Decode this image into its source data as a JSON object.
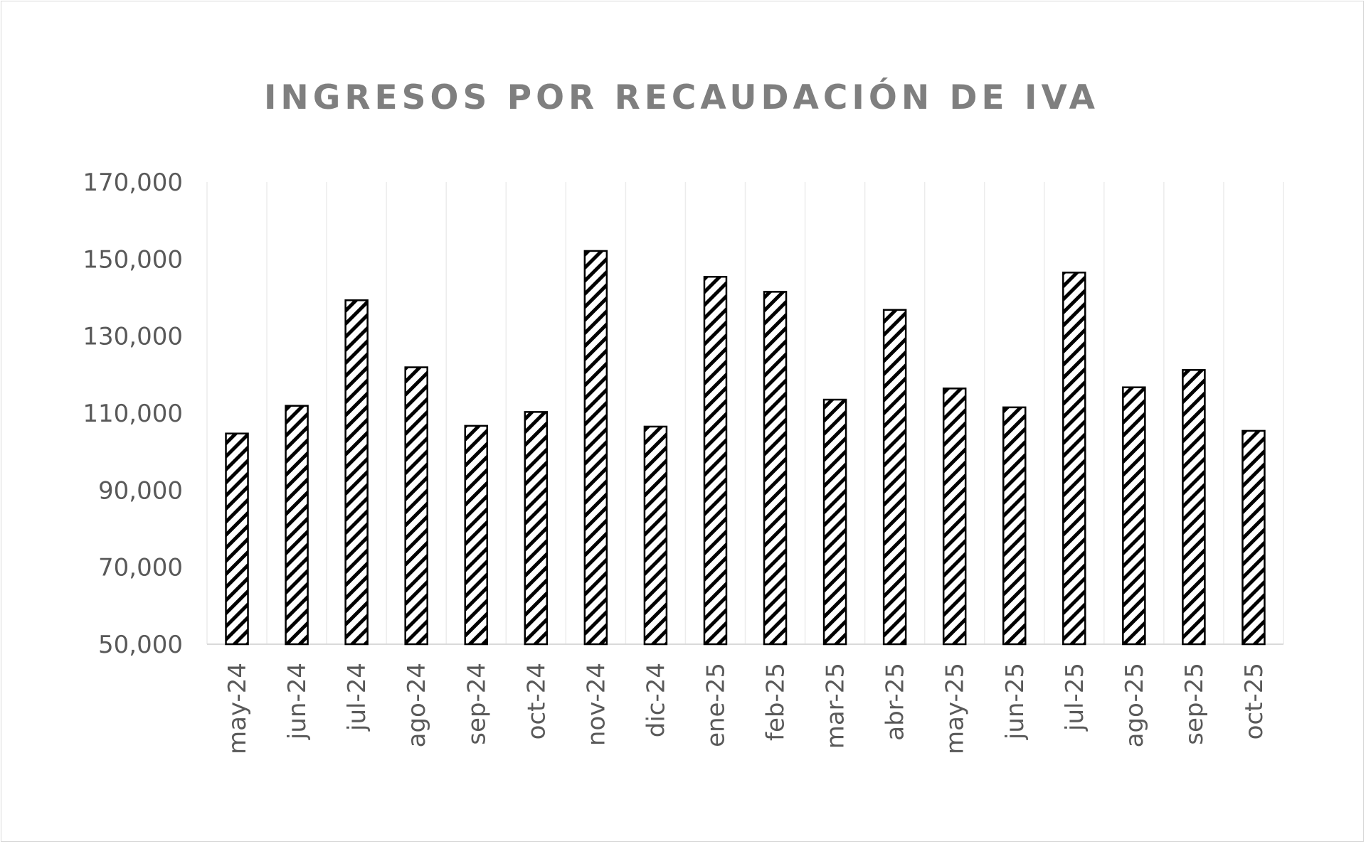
{
  "chart_data": {
    "type": "bar",
    "title": "INGRESOS POR RECAUDACIÓN DE IVA",
    "xlabel": "",
    "ylabel": "",
    "ylim": [
      50000,
      170000
    ],
    "yticks": [
      "50,000",
      "70,000",
      "90,000",
      "110,000",
      "130,000",
      "150,000",
      "170,000"
    ],
    "ytick_values": [
      50000,
      70000,
      90000,
      110000,
      130000,
      150000,
      170000
    ],
    "grid": "vertical",
    "legend": "none",
    "bar_pattern": "diagonal-hatch",
    "colors": {
      "bar_stroke": "#000000",
      "hatch": "#000000",
      "text": "#595959",
      "title": "#7f7f7f",
      "grid": "#ececec"
    },
    "categories": [
      "may-24",
      "jun-24",
      "jul-24",
      "ago-24",
      "sep-24",
      "oct-24",
      "nov-24",
      "dic-24",
      "ene-25",
      "feb-25",
      "mar-25",
      "abr-25",
      "may-25",
      "jun-25",
      "jul-25",
      "ago-25",
      "sep-25",
      "oct-25"
    ],
    "values": [
      104700,
      111900,
      139300,
      121900,
      106700,
      110300,
      152100,
      106500,
      145400,
      141500,
      113500,
      136800,
      116400,
      111500,
      146500,
      116700,
      121200,
      105400
    ]
  }
}
